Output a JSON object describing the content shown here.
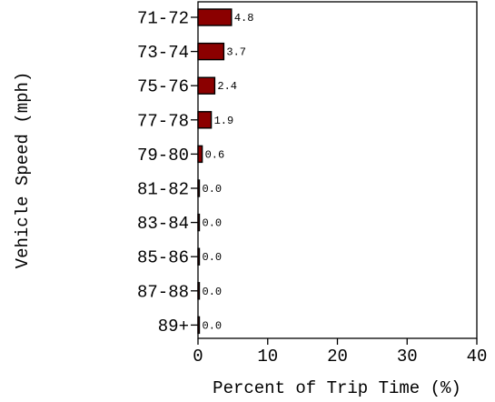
{
  "chart_data": {
    "type": "bar",
    "orientation": "horizontal",
    "title": "",
    "xlabel": "Percent of Trip Time (%)",
    "ylabel": "Vehicle Speed (mph)",
    "categories": [
      "71-72",
      "73-74",
      "75-76",
      "77-78",
      "79-80",
      "81-82",
      "83-84",
      "85-86",
      "87-88",
      "89+"
    ],
    "values": [
      4.8,
      3.7,
      2.4,
      1.9,
      0.6,
      0.0,
      0.0,
      0.0,
      0.0,
      0.0
    ],
    "value_labels": [
      "4.8",
      "3.7",
      "2.4",
      "1.9",
      "0.6",
      "0.0",
      "0.0",
      "0.0",
      "0.0",
      "0.0"
    ],
    "xlim": [
      0,
      40
    ],
    "xticks": [
      "0",
      "10",
      "20",
      "30",
      "40"
    ],
    "grid": false,
    "colors": {
      "bar": "#8b0000",
      "axis": "#000000"
    }
  }
}
